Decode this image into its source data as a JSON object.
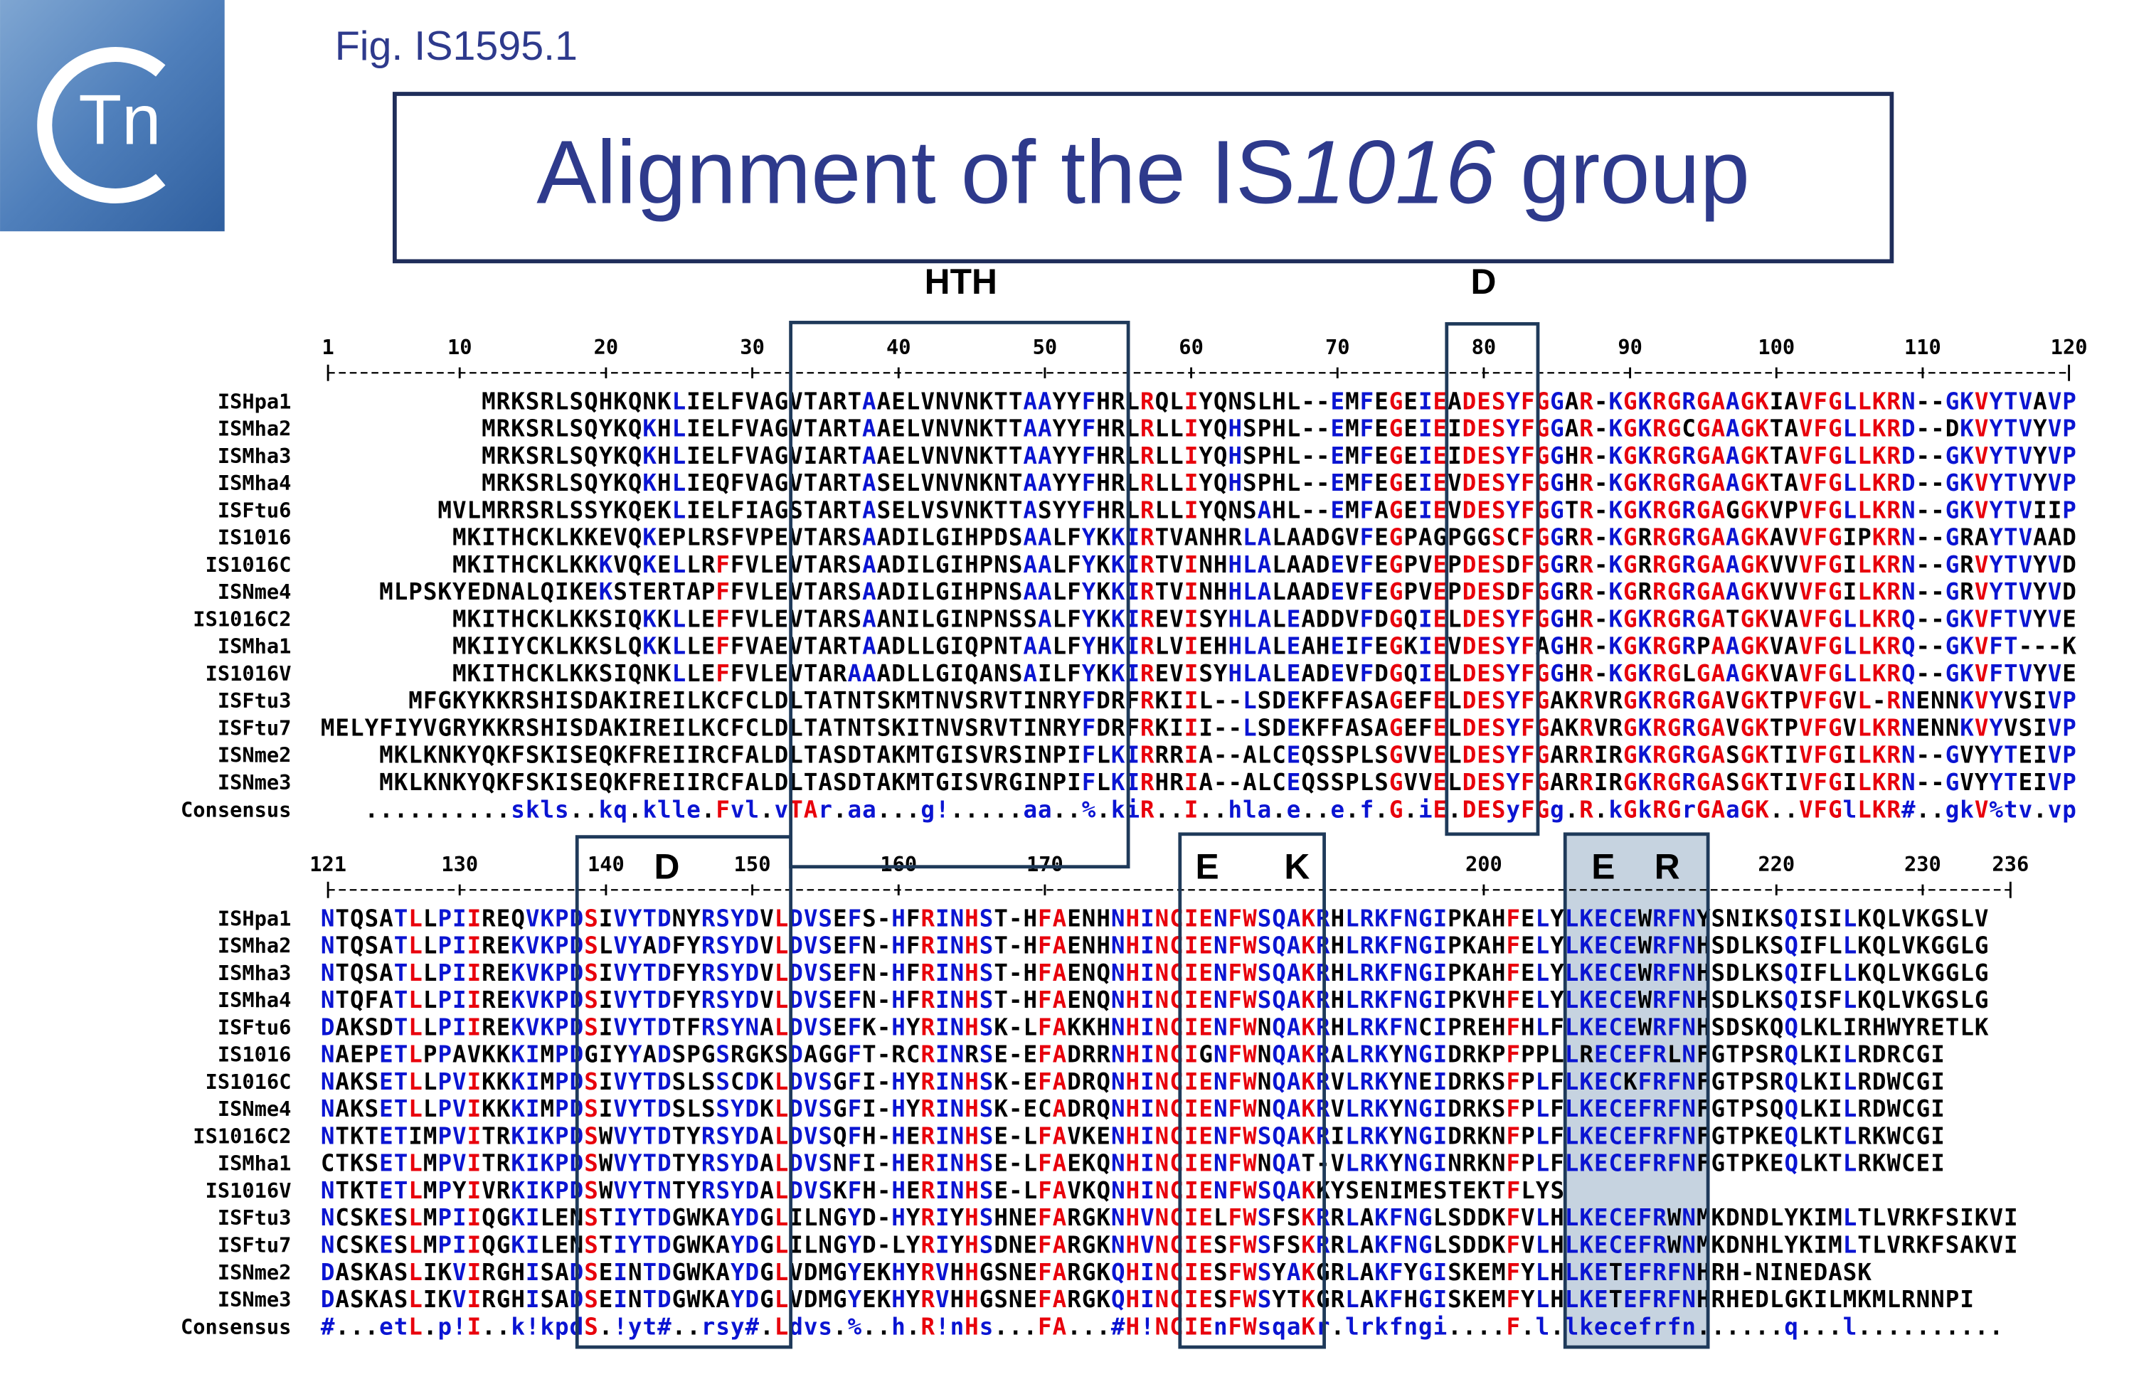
{
  "header": {
    "logo": "Tn",
    "figure_label": "Fig. IS1595.1",
    "title": {
      "prefix": "Alignment of the IS",
      "italic": "1016",
      "suffix": " group"
    }
  },
  "annotations": {
    "hth": "HTH",
    "d_top": "D",
    "d_block2": "D",
    "e_left": "E",
    "k": "K",
    "e_right": "E",
    "r": "R"
  },
  "blocks": [
    {
      "ruler": [
        1,
        10,
        20,
        30,
        40,
        50,
        60,
        70,
        80,
        90,
        100,
        110,
        120
      ],
      "rows": [
        {
          "name": "ISHpa1",
          "sequence": "MRKSRLSQHKQNKLIELFVAGVTARTAAELVNVNKTTAAYYFHRLRQLIYQNSLHL--EMFEGEIEADESYFGGAR-KGKRGRGAAGKIAVFGLLKRN--GKVYTVAVP"
        },
        {
          "name": "ISMha2",
          "sequence": "MRKSRLSQYKQKHLIELFVAGVTARTAAELVNVNKTTAAYYFHRLRLLIYQHSPHL--EMFEGEIEIDESYFGGAR-KGKRGCGAAGKTAVFGLLKRD--DKVYTVYVP"
        },
        {
          "name": "ISMha3",
          "sequence": "MRKSRLSQYKQKHLIELFVAGVIARTAAELVNVNKTTAAYYFHRLRLLIYQHSPHL--EMFEGEIEIDESYFGGHR-KGKRGRGAAGKTAVFGLLKRD--GKVYTVYVP"
        },
        {
          "name": "ISMha4",
          "sequence": "MRKSRLSQYKQKHLIEQFVAGVTARTASELVNVNKNTAAYYFHRLRLLIYQHSPHL--EMFEGEIEVDESYFGGHR-KGKRGRGAAGKTAVFGLLKRD--GKVYTVYVP"
        },
        {
          "name": "ISFtu6",
          "sequence": "MVLMRRSRLSSYKQEKLIELFIAGSTARTASELVSVNKTTASYYFHRLRLLIYQNSAHL--EMFAGEIEVDESYFGGTR-KGKRGRGAGGKVPVFGLLKRN--GKVYTVIIP"
        },
        {
          "name": "IS1016",
          "sequence": "MKITHCKLKKEVQKEPLRSFVPEVTARSAADILGIHPDSAALFYKKIRTVANHRLALAADGVFEGPAGPGGSCFGGRR-KGRRGRGAAGKAVVFGIPKRN--GRAYTVAAD"
        },
        {
          "name": "IS1016C",
          "sequence": "MKITHCKLKKKVQKELLRFFVLEVTARSAADILGIHPNSAALFYKKIRTVINHHLALAADEVFEGPVEPDESDFGGRR-KGRRGRGAAGKVVVFGILKRN--GRVYTVYVD"
        },
        {
          "name": "ISNme4",
          "sequence": "MLPSKYEDNALQIKEKSTERTAPFFVLEVTARSAADILGIHPNSAALFYKKIRTVINHHLALAADEVFEGPVEPDESDFGGRR-KGRRGRGAAGKVVVFGILKRN--GRVYTVYVD"
        },
        {
          "name": "IS1016C2",
          "sequence": "MKITHCKLKKSIQKKLLEFFVLEVTARSAANILGINPNSSALFYKKIREVISYHLALEADDVFDGQIELDESYFGGHR-KGKRGRGATGKVAVFGLLKRQ--GKVFTVYVE"
        },
        {
          "name": "ISMha1",
          "sequence": "MKIIYCKLKKSLQKKLLEFFVAEVTARTAADLLGIQPNTAALFYHKIRLVIEHHLALEAHEIFEGKIEVDESYFAGHR-KGKRGRPAAGKVAVFGLLKRQ--GKVFT---K"
        },
        {
          "name": "IS1016V",
          "sequence": "MKITHCKLKKSIQNKLLEFFVLEVTARAAADLLGIQANSAILFYKKIREVISYHLALEADEVFDGQIELDESYFGGHR-KGKRGLGAAGKVAVFGLLKRQ--GKVFTVYVE"
        },
        {
          "name": "ISFtu3",
          "sequence": "MFGKYKKRSHISDAKIREILKCFCLDLTATNTSKMTNVSRVTINRYFDRFRKIIL--LSDEKFFASAGEFELDESYFGAKRVRGKRGRGAVGKTPVFGVL-RNENNKVYVSIVP"
        },
        {
          "name": "ISFtu7",
          "sequence": "MELYFIYVGRYKKRSHISDAKIREILKCFCLDLTATNTSKITNVSRVTINRYFDRFRKIII--LSDEKFFASAGEFELDESYFGAKRVRGKRGRGAVGKTPVFGVLKRNENNKVYVSIVP"
        },
        {
          "name": "ISNme2",
          "sequence": "MKLKNKYQKFSKISEQKFREIIRCFALDLTASDTAKMTGISVRSINPIFLKIRRRIA--ALCEQSSPLSGVVELDESYFGARRIRGKRGRGASGKTIVFGILKRN--GVYYTEIVP"
        },
        {
          "name": "ISNme3",
          "sequence": "MKLKNKYQKFSKISEQKFREIIRCFALDLTASDTAKMTGISVRGINPIFLKIRHRIA--ALCEQSSPLSGVVELDESYFGARRIRGKRGRGASGKTIVFGILKRN--GVYYTEIVP"
        }
      ],
      "consensus": {
        "name": "Consensus",
        "sequence": "..........skls..kq.klle.Fvl.vTAr.aa...g!.....aa..%.kiR..I..hla.e..e.f.G.iE.DESyFGg.R.kGkRGrGAaGK..VFGlLKR#..gkV%tv.vp"
      }
    },
    {
      "ruler": [
        121,
        130,
        140,
        150,
        160,
        170,
        200,
        220,
        230,
        236
      ],
      "rows": [
        {
          "name": "ISHpa1",
          "sequence": "NTQSATLLPIIREQVKPDSIVYTDNYRSYDVLDVSEFS-HFRINHST-HFAENHNHINCIENFWSQAKRHLRKFNGIPKAHFELYLKECEWRFNYSNIKSQISILKQLVKGSLV"
        },
        {
          "name": "ISMha2",
          "sequence": "NTQSATLLPIIREKVKPDSLVYADFYRSYDVLDVSEFN-HFRINHST-HFAENHNHINCIENFWSQAKRHLRKFNGIPKAHFELYLKECEWRFNHSDLKSQIFLLKQLVKGGLG"
        },
        {
          "name": "ISMha3",
          "sequence": "NTQSATLLPIIREKVKPDSIVYTDFYRSYDVLDVSEFN-HFRINHST-HFAENQNHINCIENFWSQAKRHLRKFNGIPKAHFELYLKECEWRFNHSDLKSQIFLLKQLVKGGLG"
        },
        {
          "name": "ISMha4",
          "sequence": "NTQFATLLPIIREKVKPDSIVYTDFYRSYDVLDVSEFN-HFRINHST-HFAENQNHINCIENFWSQAKRHLRKFNGIPKVHFELYLKECEWRFNHSDLKSQISFLKQLVKGSLG"
        },
        {
          "name": "ISFtu6",
          "sequence": "DAKSDTLLPIIREKVKPDSIVYTDTFRSYNALDVSEFK-HYRINHSK-LFAKKHNHINCIENFWNQAKRHLRKFNCIPREHFHLFLKECEWRFNHSDSKQQLKLIRHWYRETLK"
        },
        {
          "name": "IS1016",
          "sequence": "NAEPETLPPAVKKKIMPDGIYYADSPGSRGKSDAGGFT-RCRINRSE-EFADRRNHINCIGNFWNQAKRALRKYNGIDRKPFPPLLRECEFRLNFGTPSRQLKILRDRCGI"
        },
        {
          "name": "IS1016C",
          "sequence": "NAKSETLLPVIKKKIMPDSIVYTDSLSSCDKLDVSGFI-HYRINHSK-EFADRQNHINCIENFWNQAKRVLRKYNEIDRKSFPLFLKECKFRFNFGTPSRQLKILRDWCGI"
        },
        {
          "name": "ISNme4",
          "sequence": "NAKSETLLPVIKKKIMPDSIVYTDSLSSYDKLDVSGFI-HYRINHSK-ECADRQNHINCIENFWNQAKRVLRKYNGIDRKSFPLFLKECEFRFNFGTPSQQLKILRDWCGI"
        },
        {
          "name": "IS1016C2",
          "sequence": "NTKTETIMPVITRKIKPDSWVYTDTYRSYDALDVSQFH-HERINHSE-LFAVKENHINCIENFWSQAKRILRKYNGIDRKNFPLFLKECEFRFNFGTPKEQLKTLRKWCGI"
        },
        {
          "name": "ISMha1",
          "sequence": "CTKSETLMPVITRKIKPDSWVYTDTYRSYDALDVSNFI-HERINHSE-LFAEKQNHINCIENFWNQAT-VLRKYNGINRKNFPLFLKECEFRFNFGTPKEQLKTLRKWCEI"
        },
        {
          "name": "IS1016V",
          "sequence": "NTKTETLMPYIVRKIKPDSWVYTNTYRSYDALDVSKFH-HERINHSE-LFAVKQNHINCIENFWSQAKKYSENIMESTEKTFLYS"
        },
        {
          "name": "ISFtu3",
          "sequence": "NCSKESLMPIIQGKILENSTIYTDGWKAYDGLILNGYD-HYRIYHSHNEFARGKNHVNCIELFWSFSKRRLAKFNGLSDDKFVLHLKECEFRWNMKDNDLYKIMLTLVRKFSIKVI"
        },
        {
          "name": "ISFtu7",
          "sequence": "NCSKESLMPIIQGKILENSTIYTDGWKAYDGLILNGYD-LYRIYHSDNEFARGKNHVNCIESFWSFSKRRLAKFNGLSDDKFVLHLKECEFRWNMKDNHLYKIMLTLVRKFSAKVI"
        },
        {
          "name": "ISNme2",
          "sequence": "DASKASLIKVIRGHISADSEINTDGWKAYDGLVDMGYEKHYRVHHGSNEFARGKQHINCIESFWSYAKGRLAKFYGISKEMFYLHLKETEFRFNHRH-NINEDASK"
        },
        {
          "name": "ISNme3",
          "sequence": "DASKASLIKVIRGHISADSEINTDGWKAYDGLVDMGYEKHYRVHHGSNEFARGKQHINCIESFWSYTKGRLAKFHGISKEMFYLHLKETEFRFNHRHEDLGKILMKMLRNNPI"
        }
      ],
      "consensus": {
        "name": "Consensus",
        "sequence": "#...etL.p!I..k!kpdS.!yt#..rsy#.Ldvs.%..h.R!nHs...FA...#H!NCIEnFWsqaKr.lrkfngi....F.l.lkecefrfn......q...l.........."
      }
    }
  ]
}
